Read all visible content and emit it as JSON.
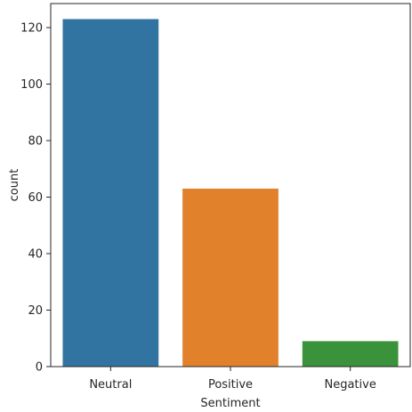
{
  "chart_data": {
    "type": "bar",
    "categories": [
      "Neutral",
      "Positive",
      "Negative"
    ],
    "values": [
      123,
      63,
      9
    ],
    "xlabel": "Sentiment",
    "ylabel": "count",
    "ylim": [
      0,
      128.5
    ],
    "yticks": [
      0,
      20,
      40,
      60,
      80,
      100,
      120
    ],
    "colors": [
      "#3274a1",
      "#e1812c",
      "#3a923a"
    ],
    "grid": false
  }
}
